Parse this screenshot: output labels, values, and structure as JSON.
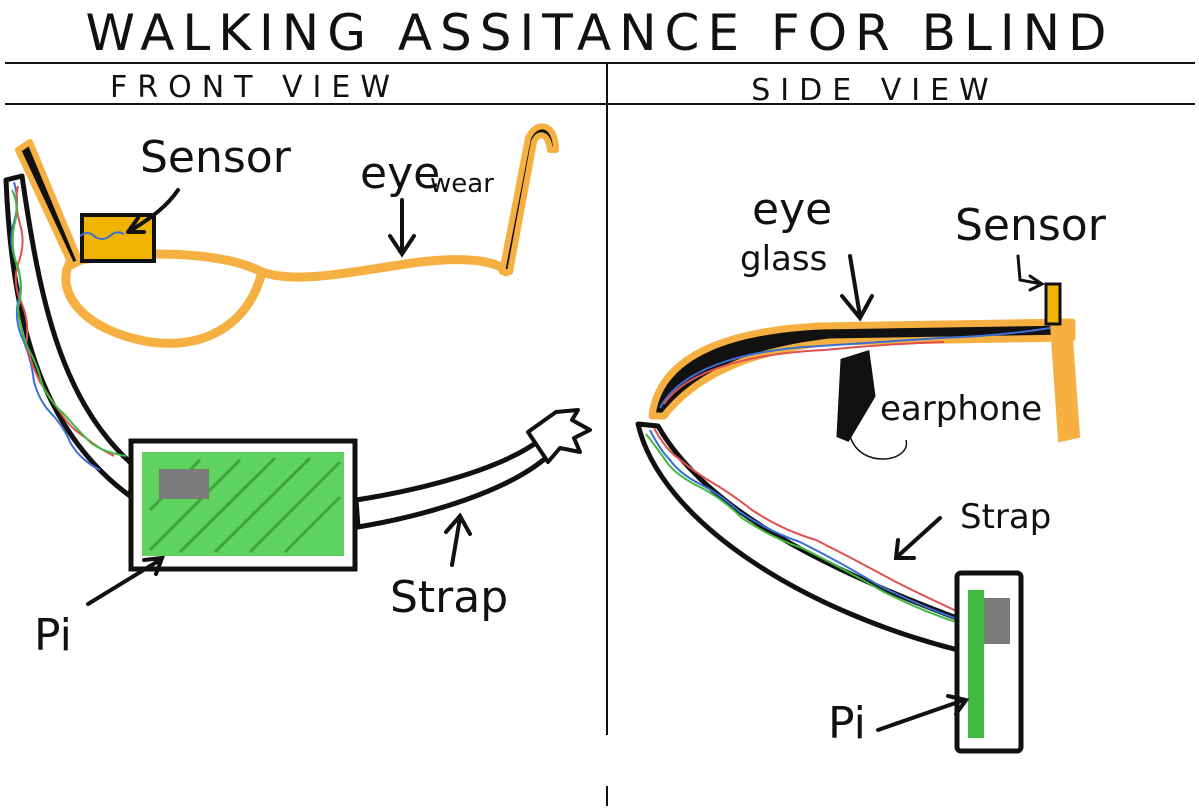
{
  "title": "WALKING ASSITANCE FOR BLIND",
  "views": {
    "front": {
      "heading": "FRONT VIEW",
      "labels": {
        "sensor": "Sensor",
        "eye": "eye",
        "wear": "wear",
        "pi": "Pi",
        "strap": "Strap"
      }
    },
    "side": {
      "heading": "SIDE VIEW",
      "labels": {
        "eye": "eye",
        "glass": "glass",
        "sensor": "Sensor",
        "earphone": "earphone",
        "strap": "Strap",
        "pi": "Pi"
      }
    }
  },
  "colors": {
    "ink": "#111111",
    "frame_orange": "#f5b041",
    "sensor_yellow": "#f0b400",
    "board_green": "#5fd35f",
    "chip_gray": "#7a7a7a",
    "wire_blue": "#3b6fd4",
    "wire_red": "#e05050",
    "wire_green": "#3fb93f"
  }
}
